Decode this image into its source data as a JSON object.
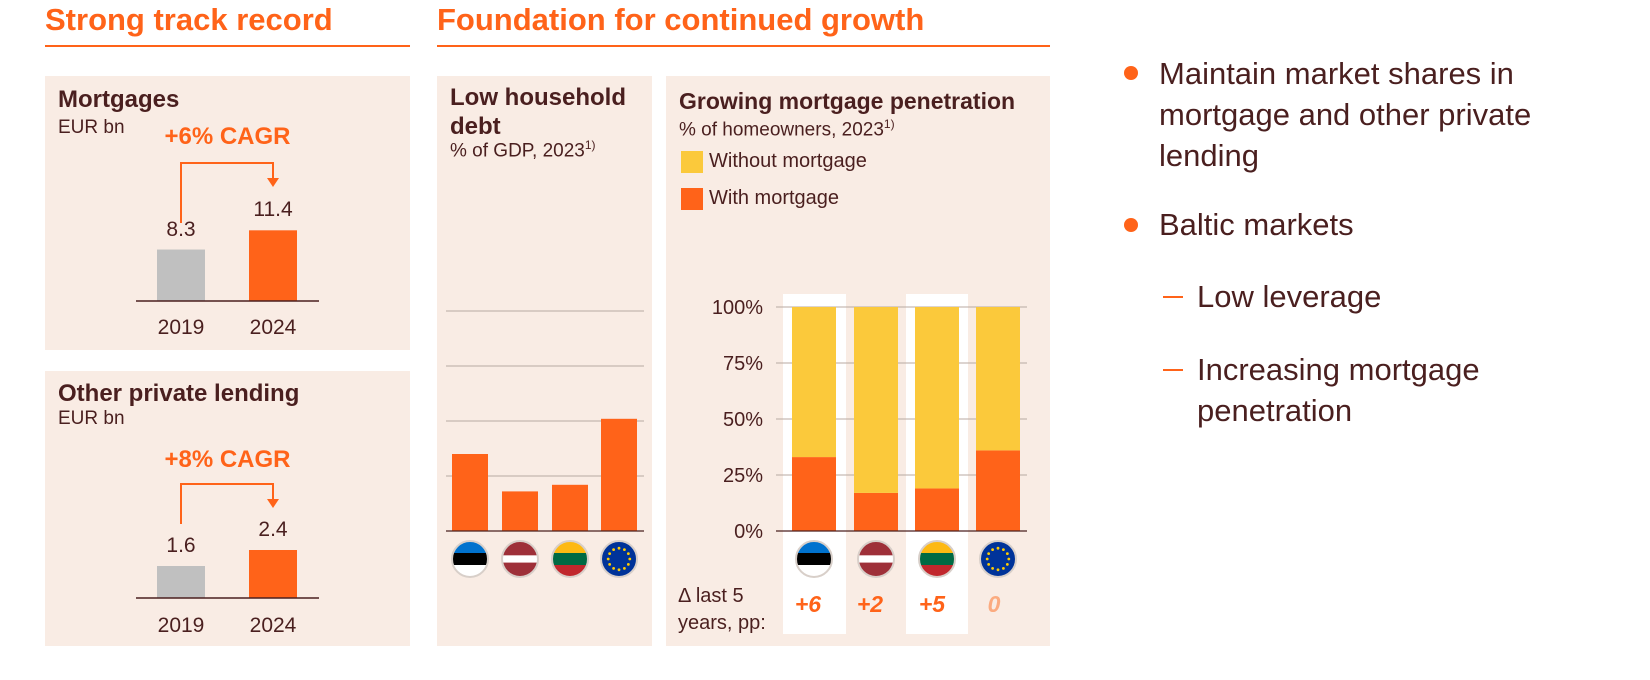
{
  "sections": {
    "left_title": "Strong track record",
    "middle_title": "Foundation for continued growth"
  },
  "colors": {
    "accent": "#ff6319",
    "grey_bar": "#c0c0c0",
    "yellow": "#fbc93b",
    "panel_bg": "#f9ece4",
    "text": "#4a1f1f"
  },
  "mortgages": {
    "title": "Mortgages",
    "unit": "EUR bn",
    "cagr": "+6% CAGR"
  },
  "other_lending": {
    "title": "Other private lending",
    "unit": "EUR bn",
    "cagr": "+8% CAGR"
  },
  "household_debt": {
    "title": "Low household debt",
    "subtitle": "% of GDP, 2023",
    "footnote": "1)"
  },
  "penetration": {
    "title": "Growing mortgage penetration",
    "subtitle": "% of homeowners, 2023",
    "footnote": "1)",
    "legend_without": "Without mortgage",
    "legend_with": "With mortgage",
    "delta_label_1": "Δ last 5",
    "delta_label_2": "years, pp:"
  },
  "flags": [
    {
      "name": "estonia-flag-icon",
      "colors": [
        "#0072ce",
        "#000000",
        "#ffffff"
      ]
    },
    {
      "name": "latvia-flag-icon",
      "colors": [
        "#9e3039",
        "#ffffff",
        "#9e3039"
      ]
    },
    {
      "name": "lithuania-flag-icon",
      "colors": [
        "#fdb913",
        "#006a44",
        "#c1272d"
      ]
    },
    {
      "name": "eu-flag-icon",
      "colors": [
        "#003399"
      ]
    }
  ],
  "chart_data": [
    {
      "type": "bar",
      "title": "Mortgages",
      "ylabel": "EUR bn",
      "categories": [
        "2019",
        "2024"
      ],
      "values": [
        8.3,
        11.4
      ],
      "annotation": "+6% CAGR"
    },
    {
      "type": "bar",
      "title": "Other private lending",
      "ylabel": "EUR bn",
      "categories": [
        "2019",
        "2024"
      ],
      "values": [
        1.6,
        2.4
      ],
      "annotation": "+8% CAGR"
    },
    {
      "type": "bar",
      "title": "Low household debt",
      "subtitle": "% of GDP, 2023",
      "categories": [
        "Estonia",
        "Latvia",
        "Lithuania",
        "EU"
      ],
      "values": [
        35,
        18,
        21,
        51
      ],
      "ylim": [
        0,
        100
      ],
      "grid": true
    },
    {
      "type": "bar",
      "stacked": true,
      "title": "Growing mortgage penetration",
      "subtitle": "% of homeowners, 2023",
      "categories": [
        "Estonia",
        "Latvia",
        "Lithuania",
        "EU"
      ],
      "series": [
        {
          "name": "With mortgage",
          "values": [
            33,
            17,
            19,
            36
          ]
        },
        {
          "name": "Without mortgage",
          "values": [
            67,
            83,
            81,
            64
          ]
        }
      ],
      "ylim": [
        0,
        100
      ],
      "yticks": [
        "0%",
        "25%",
        "50%",
        "75%",
        "100%"
      ],
      "delta_5y": [
        "+6",
        "+2",
        "+5",
        "0"
      ],
      "legend": "top-left"
    }
  ],
  "bullets": [
    {
      "level": 1,
      "text": "Maintain market shares in mortgage and other private lending"
    },
    {
      "level": 1,
      "text": "Baltic markets"
    },
    {
      "level": 2,
      "text": "Low leverage"
    },
    {
      "level": 2,
      "text": "Increasing mortgage penetration"
    }
  ]
}
